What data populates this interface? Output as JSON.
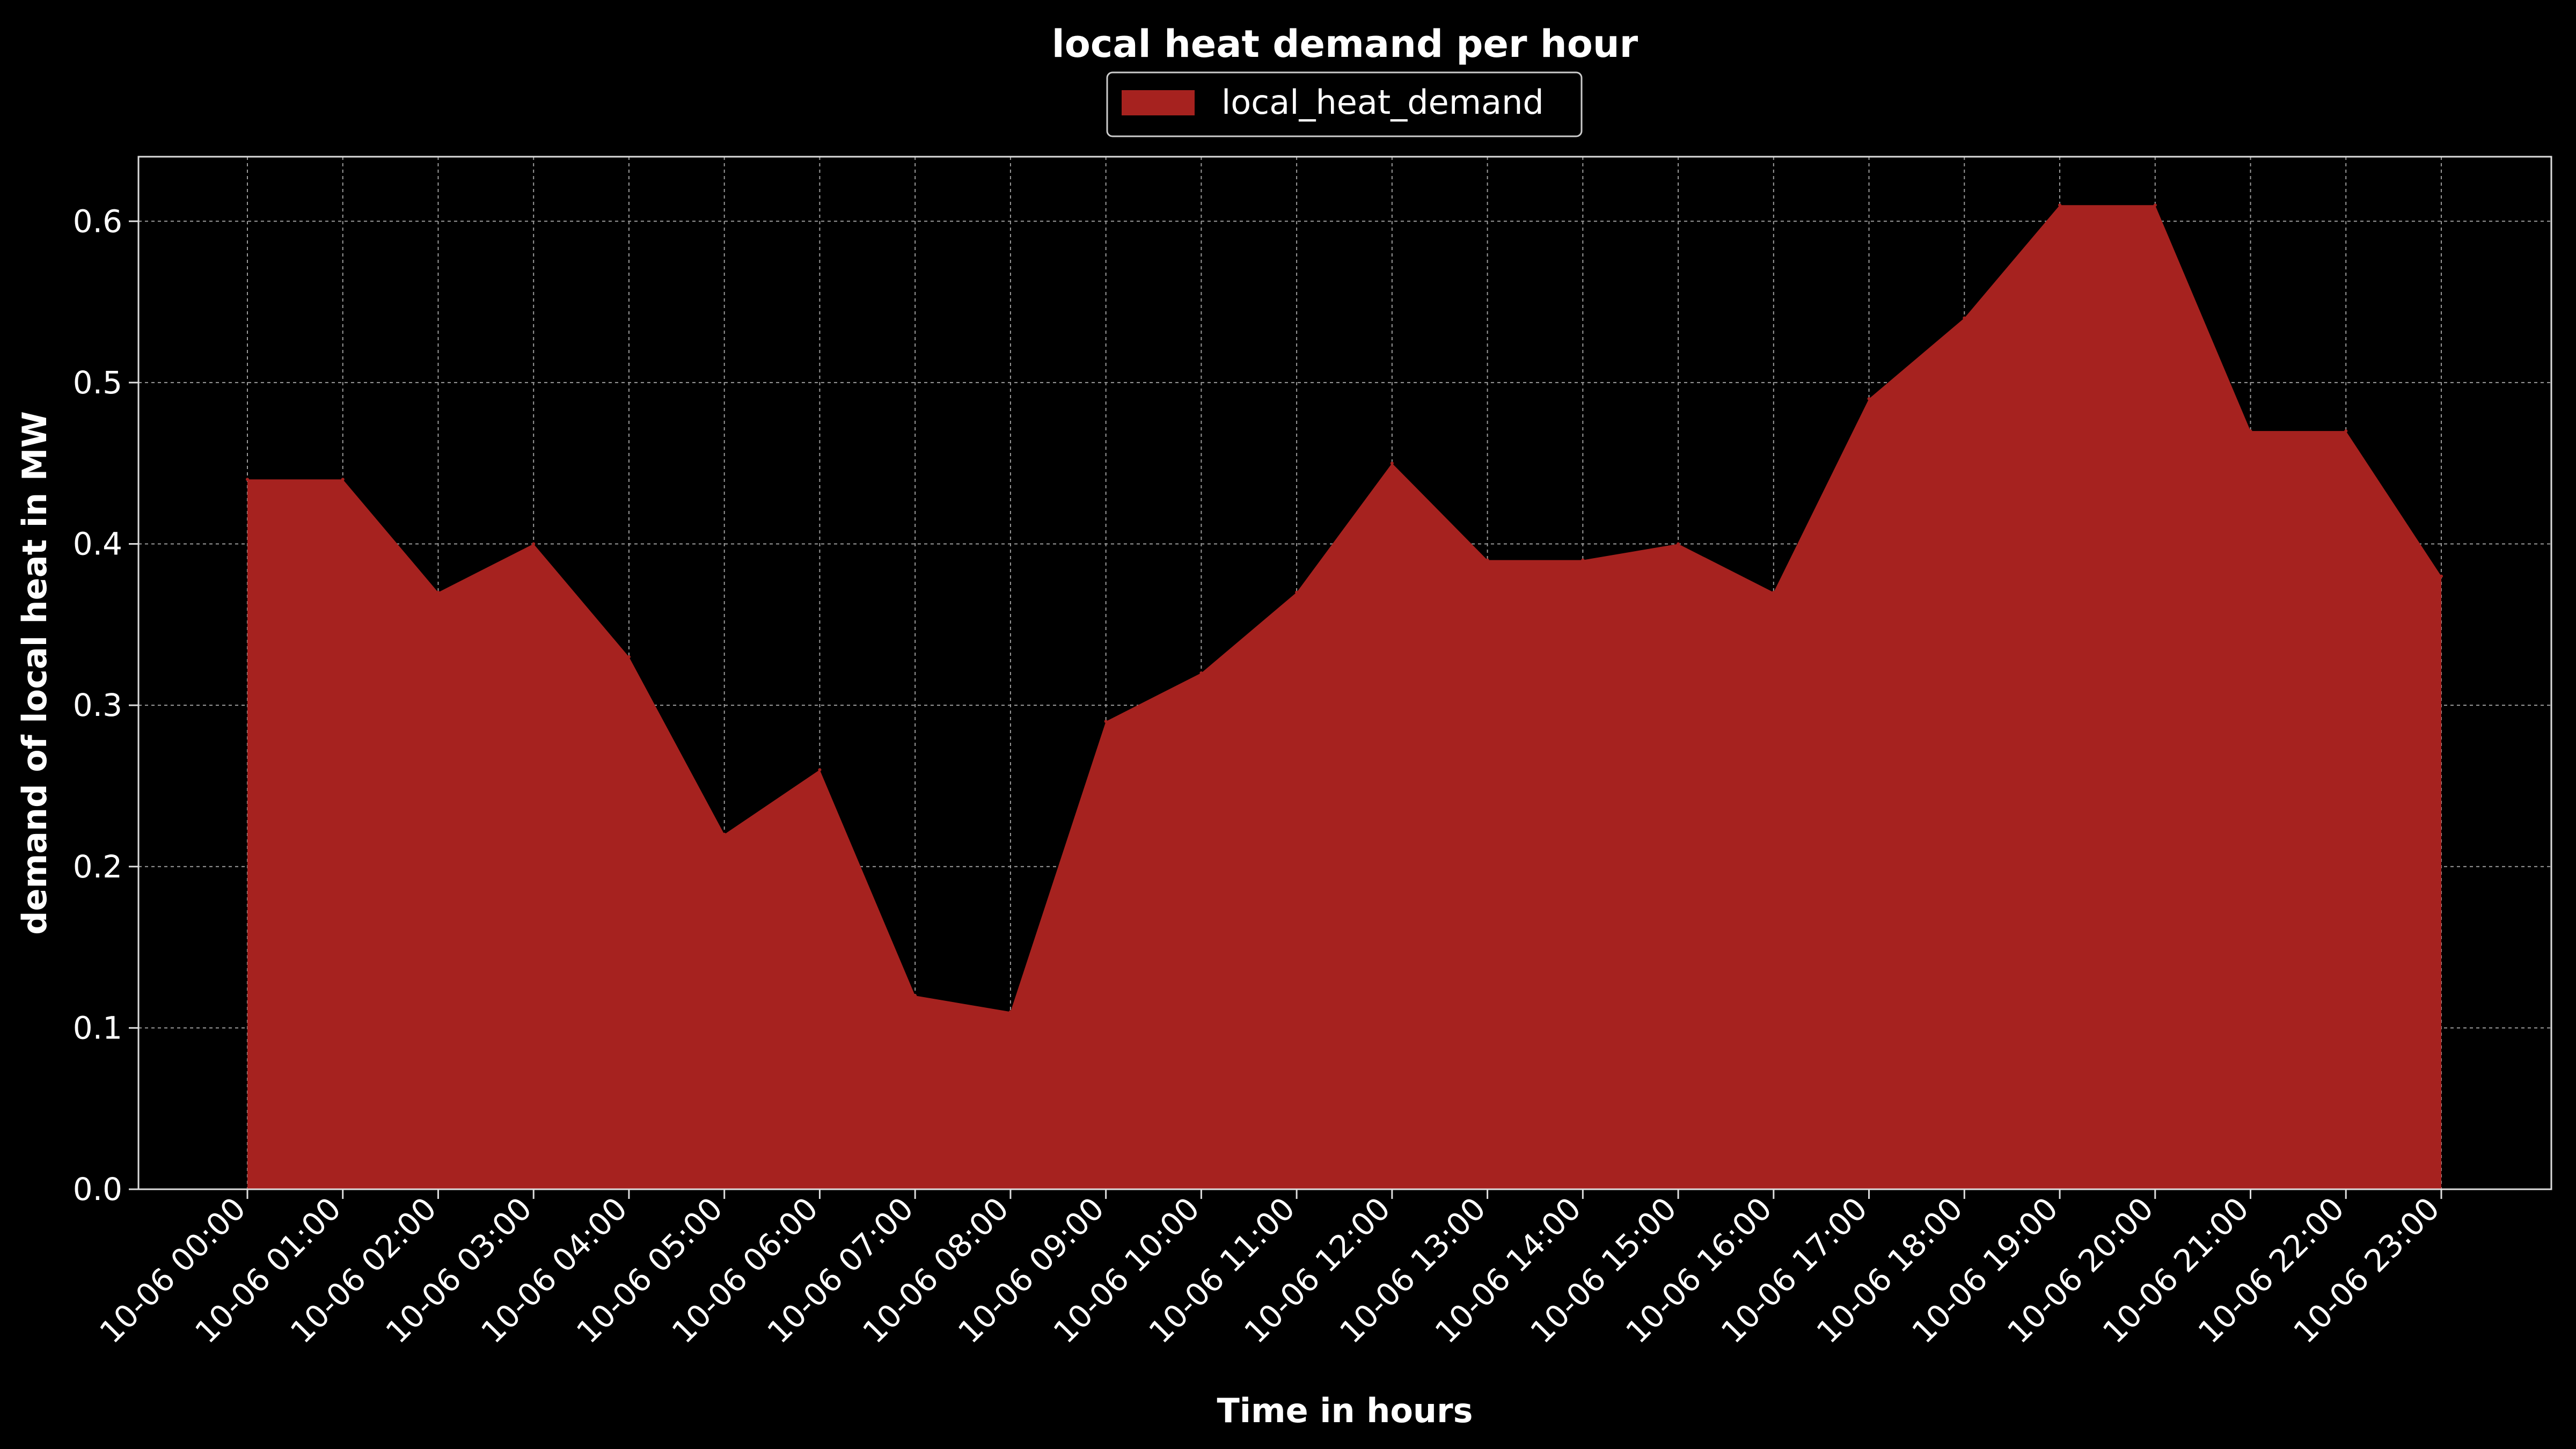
{
  "colors": {
    "background": "#000000",
    "area_fill": "#a6221f",
    "text": "#ffffff",
    "grid": "#9a9a9a",
    "frame": "#dddddd"
  },
  "chart_data": {
    "type": "area",
    "title": "local heat demand per hour",
    "xlabel": "Time in hours",
    "ylabel": "demand of local heat in MW",
    "ylim": [
      0,
      0.64
    ],
    "yticks": [
      "0.0",
      "0.1",
      "0.2",
      "0.3",
      "0.4",
      "0.5",
      "0.6"
    ],
    "ytick_values": [
      0.0,
      0.1,
      0.2,
      0.3,
      0.4,
      0.5,
      0.6
    ],
    "grid": true,
    "legend_position": "top-center",
    "x": [
      "10-06 00:00",
      "10-06 01:00",
      "10-06 02:00",
      "10-06 03:00",
      "10-06 04:00",
      "10-06 05:00",
      "10-06 06:00",
      "10-06 07:00",
      "10-06 08:00",
      "10-06 09:00",
      "10-06 10:00",
      "10-06 11:00",
      "10-06 12:00",
      "10-06 13:00",
      "10-06 14:00",
      "10-06 15:00",
      "10-06 16:00",
      "10-06 17:00",
      "10-06 18:00",
      "10-06 19:00",
      "10-06 20:00",
      "10-06 21:00",
      "10-06 22:00",
      "10-06 23:00"
    ],
    "series": [
      {
        "name": "local_heat_demand",
        "color": "#a6221f",
        "values": [
          0.44,
          0.44,
          0.37,
          0.4,
          0.33,
          0.22,
          0.26,
          0.12,
          0.11,
          0.29,
          0.32,
          0.37,
          0.45,
          0.39,
          0.39,
          0.4,
          0.37,
          0.49,
          0.54,
          0.61,
          0.61,
          0.47,
          0.47,
          0.38
        ]
      }
    ]
  }
}
